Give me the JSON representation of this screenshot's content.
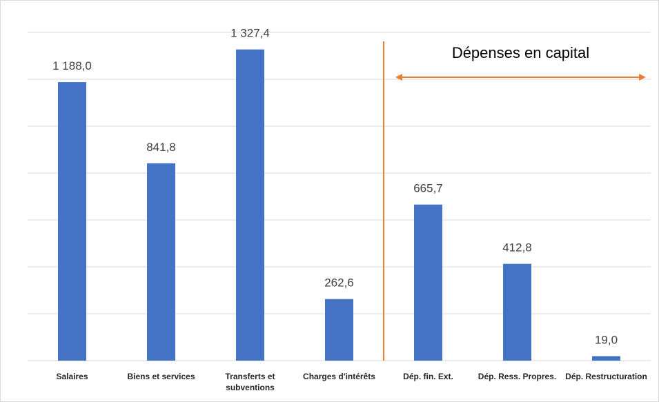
{
  "chart_data": {
    "type": "bar",
    "categories": [
      "Salaires",
      "Biens et services",
      "Transferts et subventions",
      "Charges d'intérêts",
      "Dép. fin. Ext.",
      "Dép. Ress. Propres.",
      "Dép. Restructuration"
    ],
    "values": [
      1188.0,
      841.8,
      1327.4,
      262.6,
      665.7,
      412.8,
      19.0
    ],
    "value_labels": [
      "1 188,0",
      "841,8",
      "1 327,4",
      "262,6",
      "665,7",
      "412,8",
      "19,0"
    ],
    "color": "#4472c4",
    "ylim": [
      0,
      1400
    ],
    "yticks": [
      0,
      200,
      400,
      600,
      800,
      1000,
      1200,
      1400
    ],
    "grid": true,
    "annotation": "Dépenses en capital",
    "annotation_color": "#ed7d31"
  }
}
